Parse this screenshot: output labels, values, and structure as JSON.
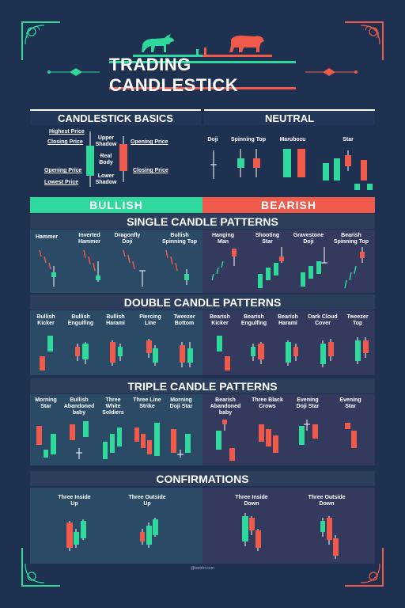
{
  "colors": {
    "bull": "#2ed99b",
    "bear": "#ef5a4b",
    "background": "#1f3150"
  },
  "title": "TRADING CANDLESTICK",
  "icons": [
    "bull-icon",
    "bear-icon"
  ],
  "basics": {
    "header": "CANDLESTICK BASICS",
    "labels": [
      "Highest Price",
      "Closing Price",
      "Opening Price",
      "Lowest Price",
      "Upper Shadow",
      "Real Body",
      "Lower Shadow",
      "Opening Price",
      "Closing Price"
    ]
  },
  "neutral": {
    "header": "NEUTRAL",
    "items": [
      "Doji",
      "Spinning Top",
      "Marubozu",
      "Star"
    ]
  },
  "bullish_label": "BULLISH",
  "bearish_label": "BEARISH",
  "single": {
    "header": "SINGLE CANDLE PATTERNS",
    "bull": [
      "Hammer",
      "Inverted Hammer",
      "Dragonfly Doji",
      "Bullish Spinning Top"
    ],
    "bear": [
      "Hanging Man",
      "Shooting Star",
      "Gravestone Doji",
      "Bearish Spinning Top"
    ]
  },
  "double": {
    "header": "DOUBLE CANDLE PATTERNS",
    "bull": [
      "Bullish Kicker",
      "Bullish Engulfing",
      "Bullish Harami",
      "Piercing Line",
      "Tweezer Bottom"
    ],
    "bear": [
      "Bearish Kicker",
      "Bearish Engulfing",
      "Bearish Harami",
      "Dark Cloud Cover",
      "Tweezer Top"
    ]
  },
  "triple": {
    "header": "TRIPLE CANDLE PATTERNS",
    "bull": [
      "Morning Star",
      "Bullish Abandoned baby",
      "Three White Soldiers",
      "Three Line Strike",
      "Morning Doji Star"
    ],
    "bear": [
      "Bearish Abandoned baby",
      "Three Black Crows",
      "Evening Doji Star",
      "Evening Star"
    ]
  },
  "confirmations": {
    "header": "CONFIRMATIONS",
    "bull": [
      "Three Inside Up",
      "Three Outside Up"
    ],
    "bear": [
      "Three Inside Down",
      "Three Outside Down"
    ]
  },
  "footer": "@wstrtrr.com"
}
